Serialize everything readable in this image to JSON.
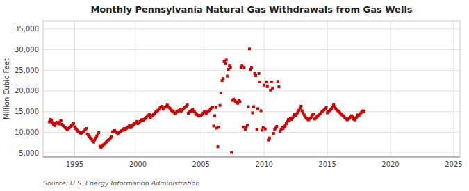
{
  "chart_data": {
    "type": "scatter",
    "title": "Monthly Pennsylvania Natural Gas Withdrawals from Gas Wells",
    "ylabel": "Million Cubic Feet",
    "source": "Source: U.S. Energy Information Administration",
    "color": "#cc0000",
    "marker": "square",
    "grid": true,
    "xlim": [
      1992.5,
      2025.5
    ],
    "xticks": [
      1995,
      2000,
      2005,
      2010,
      2015,
      2020,
      2025
    ],
    "ylim": [
      4000,
      37000
    ],
    "yticks": [
      {
        "value": 5000,
        "label": "5,000"
      },
      {
        "value": 10000,
        "label": "10,000"
      },
      {
        "value": 15000,
        "label": "15,000"
      },
      {
        "value": 20000,
        "label": "20,000"
      },
      {
        "value": 25000,
        "label": "25,000"
      },
      {
        "value": 30000,
        "label": "30,000"
      },
      {
        "value": 35000,
        "label": "35,000"
      }
    ],
    "x": [
      1993,
      1993.083333,
      1993.166667,
      1993.25,
      1993.333333,
      1993.416667,
      1993.5,
      1993.583333,
      1993.666667,
      1993.75,
      1993.833333,
      1993.916667,
      1994,
      1994.083333,
      1994.166667,
      1994.25,
      1994.333333,
      1994.416667,
      1994.5,
      1994.583333,
      1994.666667,
      1994.75,
      1994.833333,
      1994.916667,
      1995,
      1995.083333,
      1995.166667,
      1995.25,
      1995.333333,
      1995.416667,
      1995.5,
      1995.583333,
      1995.666667,
      1995.75,
      1995.833333,
      1995.916667,
      1996,
      1996.083333,
      1996.166667,
      1996.25,
      1996.333333,
      1996.416667,
      1996.5,
      1996.583333,
      1996.666667,
      1996.75,
      1996.833333,
      1996.916667,
      1997,
      1997.083333,
      1997.166667,
      1997.25,
      1997.333333,
      1997.416667,
      1997.5,
      1997.583333,
      1997.666667,
      1997.75,
      1997.833333,
      1997.916667,
      1998,
      1998.083333,
      1998.166667,
      1998.25,
      1998.333333,
      1998.416667,
      1998.5,
      1998.583333,
      1998.666667,
      1998.75,
      1998.833333,
      1998.916667,
      1999,
      1999.083333,
      1999.166667,
      1999.25,
      1999.333333,
      1999.416667,
      1999.5,
      1999.583333,
      1999.666667,
      1999.75,
      1999.833333,
      1999.916667,
      2000,
      2000.083333,
      2000.166667,
      2000.25,
      2000.333333,
      2000.416667,
      2000.5,
      2000.583333,
      2000.666667,
      2000.75,
      2000.833333,
      2000.916667,
      2001,
      2001.083333,
      2001.166667,
      2001.25,
      2001.333333,
      2001.416667,
      2001.5,
      2001.583333,
      2001.666667,
      2001.75,
      2001.833333,
      2001.916667,
      2002,
      2002.083333,
      2002.166667,
      2002.25,
      2002.333333,
      2002.416667,
      2002.5,
      2002.583333,
      2002.666667,
      2002.75,
      2002.833333,
      2002.916667,
      2003,
      2003.083333,
      2003.166667,
      2003.25,
      2003.333333,
      2003.416667,
      2003.5,
      2003.583333,
      2003.666667,
      2003.75,
      2003.833333,
      2003.916667,
      2004,
      2004.083333,
      2004.166667,
      2004.25,
      2004.333333,
      2004.416667,
      2004.5,
      2004.583333,
      2004.666667,
      2004.75,
      2004.833333,
      2004.916667,
      2005,
      2005.083333,
      2005.166667,
      2005.25,
      2005.333333,
      2005.416667,
      2005.5,
      2005.583333,
      2005.666667,
      2005.75,
      2005.833333,
      2005.916667,
      2006,
      2006.083333,
      2006.166667,
      2006.25,
      2006.333333,
      2006.416667,
      2006.5,
      2006.583333,
      2006.666667,
      2006.75,
      2006.833333,
      2006.916667,
      2007,
      2007.083333,
      2007.166667,
      2007.25,
      2007.333333,
      2007.416667,
      2007.5,
      2007.583333,
      2007.666667,
      2007.75,
      2007.833333,
      2007.916667,
      2008,
      2008.083333,
      2008.166667,
      2008.25,
      2008.333333,
      2008.416667,
      2008.5,
      2008.583333,
      2008.666667,
      2008.75,
      2008.833333,
      2008.916667,
      2009,
      2009.083333,
      2009.166667,
      2009.25,
      2009.333333,
      2009.416667,
      2009.5,
      2009.583333,
      2009.666667,
      2009.75,
      2009.833333,
      2009.916667,
      2010,
      2010.083333,
      2010.166667,
      2010.25,
      2010.333333,
      2010.416667,
      2010.5,
      2010.583333,
      2010.666667,
      2010.75,
      2010.833333,
      2010.916667,
      2011,
      2011.083333,
      2011.166667,
      2011.25,
      2011.333333,
      2011.416667,
      2011.5,
      2011.583333,
      2011.666667,
      2011.75,
      2011.833333,
      2011.916667,
      2012,
      2012.083333,
      2012.166667,
      2012.25,
      2012.333333,
      2012.416667,
      2012.5,
      2012.583333,
      2012.666667,
      2012.75,
      2012.833333,
      2012.916667,
      2013,
      2013.083333,
      2013.166667,
      2013.25,
      2013.333333,
      2013.416667,
      2013.5,
      2013.583333,
      2013.666667,
      2013.75,
      2013.833333,
      2013.916667,
      2014,
      2014.083333,
      2014.166667,
      2014.25,
      2014.333333,
      2014.416667,
      2014.5,
      2014.583333,
      2014.666667,
      2014.75,
      2014.833333,
      2014.916667,
      2015,
      2015.083333,
      2015.166667,
      2015.25,
      2015.333333,
      2015.416667,
      2015.5,
      2015.583333,
      2015.666667,
      2015.75,
      2015.833333,
      2015.916667,
      2016,
      2016.083333,
      2016.166667,
      2016.25,
      2016.333333,
      2016.416667,
      2016.5,
      2016.583333,
      2016.666667,
      2016.75,
      2016.833333,
      2016.916667,
      2017,
      2017.083333,
      2017.166667,
      2017.25,
      2017.333333,
      2017.416667,
      2017.5,
      2017.583333,
      2017.666667,
      2017.75,
      2017.833333,
      2017.916667
    ],
    "values": [
      12500,
      13100,
      12800,
      12300,
      11900,
      11600,
      12100,
      12400,
      12200,
      12000,
      12500,
      12800,
      11900,
      11600,
      11300,
      11100,
      10900,
      10600,
      10900,
      11100,
      11300,
      11600,
      11900,
      12100,
      11300,
      10900,
      10600,
      10300,
      10100,
      9900,
      9700,
      9900,
      10100,
      10300,
      10600,
      10900,
      9600,
      9300,
      8900,
      8600,
      8300,
      7900,
      7600,
      8100,
      8600,
      9100,
      9600,
      9900,
      6600,
      6300,
      6600,
      6900,
      7100,
      7300,
      7600,
      7900,
      8100,
      8300,
      8600,
      8900,
      10100,
      10300,
      10400,
      10100,
      9900,
      9600,
      9900,
      10100,
      10300,
      10400,
      10600,
      10900,
      10600,
      10900,
      11100,
      11300,
      11600,
      11100,
      11300,
      11600,
      11900,
      12100,
      12300,
      12600,
      12100,
      12300,
      12600,
      12900,
      13100,
      12900,
      13100,
      13300,
      13600,
      13900,
      14100,
      14300,
      13600,
      13900,
      14100,
      14300,
      14600,
      14900,
      15100,
      15300,
      15600,
      15900,
      16100,
      16300,
      15600,
      15900,
      16100,
      16300,
      16600,
      16100,
      15900,
      15600,
      15300,
      15100,
      14900,
      14600,
      14600,
      14900,
      15100,
      15300,
      15600,
      15100,
      15300,
      15600,
      15900,
      16100,
      16300,
      16600,
      14600,
      14900,
      15100,
      15300,
      15600,
      15100,
      14900,
      14600,
      14300,
      14100,
      13900,
      14100,
      14100,
      14300,
      14600,
      14900,
      15100,
      14600,
      14900,
      15100,
      15300,
      15600,
      15900,
      16100,
      11500,
      14000,
      16000,
      11000,
      6500,
      11200,
      16500,
      19500,
      22500,
      23000,
      27200,
      26700,
      27500,
      23600,
      25200,
      26200,
      25700,
      5100,
      17700,
      18000,
      17700,
      17400,
      17200,
      17000,
      17700,
      17400,
      25700,
      26200,
      11200,
      25700,
      10700,
      11200,
      11700,
      16200,
      30200,
      25200,
      25700,
      14700,
      16200,
      24200,
      23700,
      10700,
      15700,
      24200,
      22200,
      15200,
      10500,
      11200,
      21400,
      10800,
      22200,
      21200,
      8100,
      8600,
      20200,
      22200,
      20700,
      9700,
      10700,
      11000,
      11400,
      22300,
      21000,
      10200,
      10600,
      11200,
      10900,
      11300,
      11600,
      12100,
      12600,
      13100,
      12900,
      13400,
      13100,
      13500,
      13800,
      14300,
      14100,
      14500,
      14800,
      15300,
      15800,
      16300,
      15200,
      14700,
      14200,
      13700,
      13400,
      13200,
      13000,
      13200,
      13400,
      13700,
      14200,
      14400,
      13200,
      13400,
      13700,
      14000,
      14200,
      14400,
      14700,
      15000,
      15200,
      15400,
      15700,
      16000,
      14700,
      15000,
      15200,
      15400,
      15700,
      16200,
      16700,
      16200,
      15700,
      15400,
      15200,
      15000,
      14700,
      14400,
      14200,
      14000,
      13700,
      13400,
      13200,
      13000,
      13200,
      13400,
      13700,
      14000,
      13700,
      13200,
      13000,
      13400,
      13700,
      14200,
      14000,
      14400,
      14700,
      15000,
      15200,
      15000
    ]
  }
}
